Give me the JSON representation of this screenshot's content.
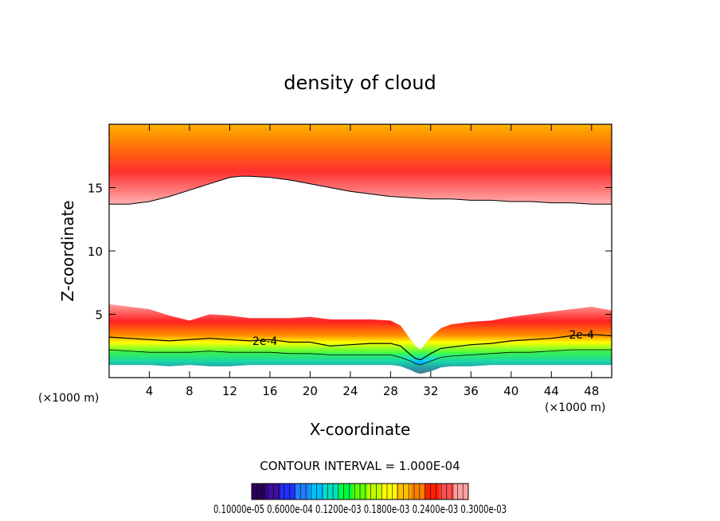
{
  "chart_data": {
    "type": "heatmap",
    "title": "density of cloud",
    "xlabel": "X-coordinate",
    "ylabel": "Z-coordinate",
    "x_unit": "(×1000 m)",
    "xlim": [
      0,
      50
    ],
    "ylim": [
      0,
      20
    ],
    "x_ticks": [
      4,
      8,
      12,
      16,
      20,
      24,
      28,
      32,
      36,
      40,
      44,
      48
    ],
    "y_ticks": [
      5,
      10,
      15
    ],
    "contour_interval_text": "CONTOUR INTERVAL = 1.000E-04",
    "contour_labels": [
      {
        "text": "2e-4",
        "x": 15.5,
        "z": 2.9
      },
      {
        "text": "2e-4",
        "x": 47.0,
        "z": 3.4
      }
    ],
    "upper_layer": {
      "x": [
        0,
        2,
        4,
        6,
        8,
        10,
        12,
        13,
        14,
        16,
        18,
        20,
        22,
        24,
        26,
        28,
        30,
        32,
        34,
        36,
        38,
        40,
        42,
        44,
        46,
        48,
        50
      ],
      "base_z": [
        13.7,
        13.7,
        13.9,
        14.3,
        14.8,
        15.3,
        15.8,
        15.9,
        15.9,
        15.8,
        15.6,
        15.3,
        15.0,
        14.7,
        14.5,
        14.3,
        14.2,
        14.1,
        14.1,
        14.0,
        14.0,
        13.9,
        13.9,
        13.8,
        13.8,
        13.7,
        13.7
      ],
      "peak_z": [
        16.0,
        16.5,
        17.0,
        17.5,
        17.9,
        18.1,
        18.0,
        17.9,
        17.7,
        17.4,
        17.1,
        16.9,
        16.7,
        16.5,
        16.4,
        16.3,
        16.2,
        16.1,
        16.0,
        16.0,
        15.9,
        15.9,
        15.8,
        15.8,
        15.7,
        15.7,
        15.7
      ]
    },
    "lower_layer": {
      "x": [
        0,
        2,
        4,
        6,
        8,
        10,
        12,
        14,
        16,
        18,
        20,
        22,
        24,
        26,
        28,
        29,
        30,
        30.5,
        31,
        32,
        33,
        34,
        36,
        38,
        40,
        42,
        44,
        46,
        48,
        50
      ],
      "top_z": [
        5.8,
        5.6,
        5.4,
        4.9,
        4.5,
        5.0,
        4.9,
        4.7,
        4.7,
        4.7,
        4.8,
        4.6,
        4.6,
        4.6,
        4.5,
        4.1,
        3.0,
        2.5,
        2.2,
        3.2,
        3.9,
        4.2,
        4.4,
        4.5,
        4.8,
        5.0,
        5.2,
        5.4,
        5.6,
        5.3
      ],
      "contour_2e4_z": [
        3.2,
        3.1,
        3.0,
        2.9,
        3.0,
        3.1,
        3.0,
        2.9,
        3.0,
        2.8,
        2.8,
        2.5,
        2.6,
        2.7,
        2.7,
        2.5,
        1.8,
        1.5,
        1.4,
        1.9,
        2.3,
        2.4,
        2.6,
        2.7,
        2.9,
        3.0,
        3.1,
        3.3,
        3.4,
        3.3
      ],
      "green_band_z": [
        2.2,
        2.1,
        2.0,
        2.0,
        2.0,
        2.1,
        2.0,
        2.0,
        2.0,
        1.9,
        1.9,
        1.8,
        1.8,
        1.8,
        1.8,
        1.6,
        1.3,
        1.1,
        1.0,
        1.3,
        1.6,
        1.7,
        1.8,
        1.9,
        2.0,
        2.0,
        2.1,
        2.2,
        2.2,
        2.2
      ],
      "base_z": [
        1.0,
        1.0,
        1.0,
        0.9,
        1.0,
        0.9,
        0.9,
        1.0,
        1.0,
        1.0,
        1.0,
        1.0,
        1.0,
        1.0,
        1.0,
        0.9,
        0.6,
        0.4,
        0.3,
        0.5,
        0.8,
        0.9,
        0.9,
        1.0,
        1.0,
        1.0,
        1.0,
        1.0,
        1.0,
        1.0
      ]
    },
    "colorbar": {
      "colors": [
        "#2a005a",
        "#3a10a0",
        "#2030ff",
        "#2080ff",
        "#00c0ff",
        "#00e0c0",
        "#00ff40",
        "#60ff00",
        "#c0ff00",
        "#ffff00",
        "#ffc000",
        "#ff8000",
        "#ff2000",
        "#ff5050",
        "#ffa0a0"
      ],
      "labels_text": "0.10000e-05 0.6000e-04 0.1200e-03 0.1800e-03 0.2400e-03 0.3000e-03",
      "labels": [
        "0.1000e-05",
        "0.6000e-04",
        "0.1200e-03",
        "0.1800e-03",
        "0.2400e-03",
        "0.3000e-03"
      ]
    }
  }
}
